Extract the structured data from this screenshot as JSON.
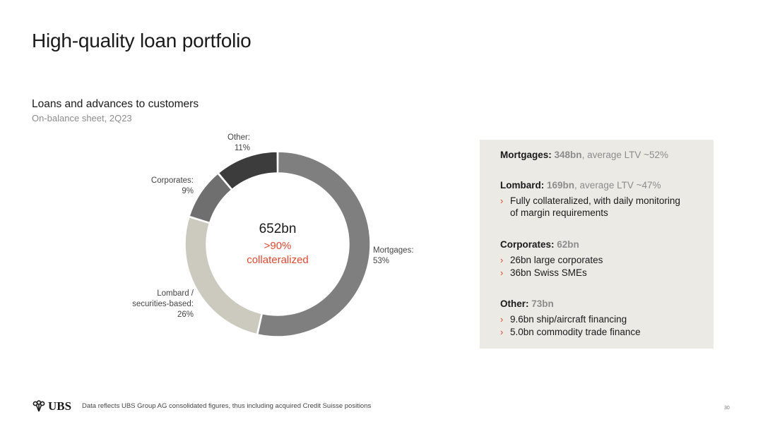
{
  "title": "High-quality loan portfolio",
  "chart_heading": "Loans and advances to customers",
  "chart_subheading": "On-balance sheet, 2Q23",
  "chart_data": {
    "type": "pie",
    "donut": true,
    "total_label": "652bn",
    "center_highlight": ">90%",
    "center_note": "collateralized",
    "slices": [
      {
        "name_lines": [
          "Mortgages:"
        ],
        "pct_label": "53%",
        "value": 53,
        "color": "#7f7f7f"
      },
      {
        "name_lines": [
          "Lombard /",
          "securities-based:"
        ],
        "pct_label": "26%",
        "value": 26,
        "color": "#ccc9be"
      },
      {
        "name_lines": [
          "Corporates:"
        ],
        "pct_label": "9%",
        "value": 9,
        "color": "#6f6f6f"
      },
      {
        "name_lines": [
          "Other:"
        ],
        "pct_label": "11%",
        "value": 11,
        "color": "#3c3c3c"
      }
    ]
  },
  "panel": {
    "mortgages": {
      "name": "Mortgages:",
      "value": "348bn",
      "detail": ", average LTV ~52%"
    },
    "lombard": {
      "name": "Lombard:",
      "value": "169bn",
      "detail": ", average LTV ~47%",
      "bullets": [
        "Fully collateralized, with daily monitoring",
        "of margin requirements"
      ]
    },
    "corporates": {
      "name": "Corporates:",
      "value": "62bn",
      "bullets": [
        "26bn large corporates",
        "36bn Swiss SMEs"
      ]
    },
    "other": {
      "name": "Other:",
      "value": "73bn",
      "bullets": [
        "9.6bn ship/aircraft financing",
        "5.0bn commodity trade finance"
      ]
    }
  },
  "footer": {
    "logo_text": "UBS",
    "note": "Data reflects UBS Group AG consolidated figures, thus including acquired Credit Suisse positions",
    "page_number": "30"
  },
  "colors": {
    "accent": "#e2482f",
    "panel_bg": "#ebeae5"
  }
}
